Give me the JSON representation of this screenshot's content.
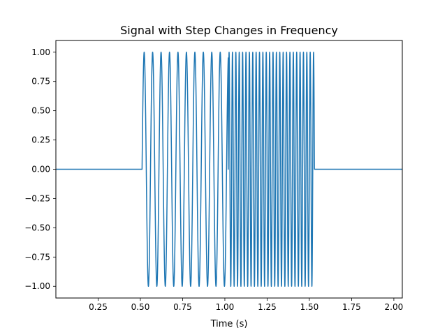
{
  "chart_data": {
    "type": "line",
    "title": "Signal with Step Changes in Frequency",
    "xlabel": "Time (s)",
    "ylabel": "",
    "xlim": [
      0.0,
      2.05
    ],
    "ylim": [
      -1.1,
      1.1
    ],
    "x_ticks": [
      0.25,
      0.5,
      0.75,
      1.0,
      1.25,
      1.5,
      1.75,
      2.0
    ],
    "x_tick_labels": [
      "0.25",
      "0.50",
      "0.75",
      "1.00",
      "1.25",
      "1.50",
      "1.75",
      "2.00"
    ],
    "y_ticks": [
      1.0,
      0.75,
      0.5,
      0.25,
      0.0,
      -0.25,
      -0.5,
      -0.75,
      -1.0
    ],
    "y_tick_labels": [
      "1.00",
      "0.75",
      "0.50",
      "0.25",
      "0.00",
      "−0.25",
      "−0.50",
      "−0.75",
      "−1.00"
    ],
    "grid": false,
    "legend": "none",
    "series": [
      {
        "color": "#1f77b4",
        "segments": [
          {
            "x_start": 0.0,
            "x_end": 0.51,
            "kind": "constant",
            "value": 0.0
          },
          {
            "x_start": 0.51,
            "x_end": 1.02,
            "kind": "sine",
            "frequency_hz": 20,
            "amplitude": 1.0
          },
          {
            "x_start": 1.02,
            "x_end": 1.53,
            "kind": "sine",
            "frequency_hz": 50,
            "amplitude": 1.0
          },
          {
            "x_start": 1.53,
            "x_end": 2.05,
            "kind": "constant",
            "value": 0.0
          }
        ]
      }
    ]
  }
}
